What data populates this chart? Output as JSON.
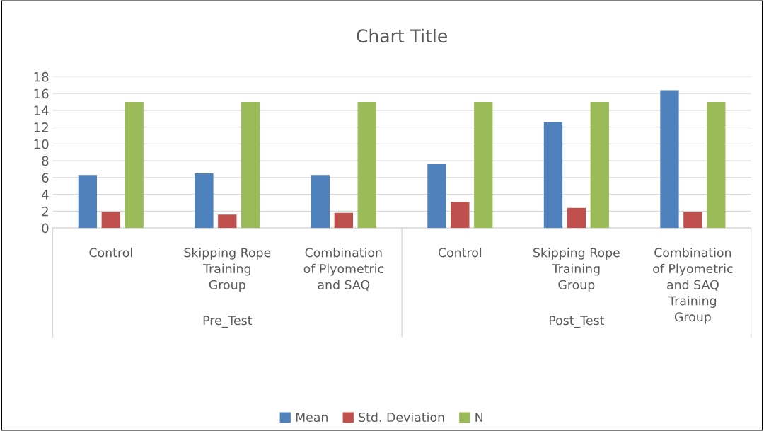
{
  "chart_data": {
    "type": "bar",
    "title": "Chart Title",
    "categories": [
      "Control",
      "Skipping Rope\nTraining\nGroup",
      "Combination\nof Plyometric\nand SAQ",
      "Control",
      "Skipping Rope\nTraining\nGroup",
      "Combination\nof Plyometric\nand SAQ\nTraining\nGroup"
    ],
    "annotations": [
      "Pre_Test",
      "Post_Test"
    ],
    "series": [
      {
        "name": "Mean",
        "color": "#4f81bd",
        "values": [
          6.3,
          6.5,
          6.3,
          7.6,
          12.6,
          16.4
        ]
      },
      {
        "name": "Std. Deviation",
        "color": "#c0504d",
        "values": [
          1.9,
          1.6,
          1.8,
          3.1,
          2.4,
          1.9
        ]
      },
      {
        "name": "N",
        "color": "#9bbb59",
        "values": [
          15,
          15,
          15,
          15,
          15,
          15
        ]
      }
    ],
    "ylim": [
      0,
      18
    ],
    "yticks": [
      0,
      2,
      4,
      6,
      8,
      10,
      12,
      14,
      16,
      18
    ],
    "grid": "y",
    "legend": "bottom"
  }
}
